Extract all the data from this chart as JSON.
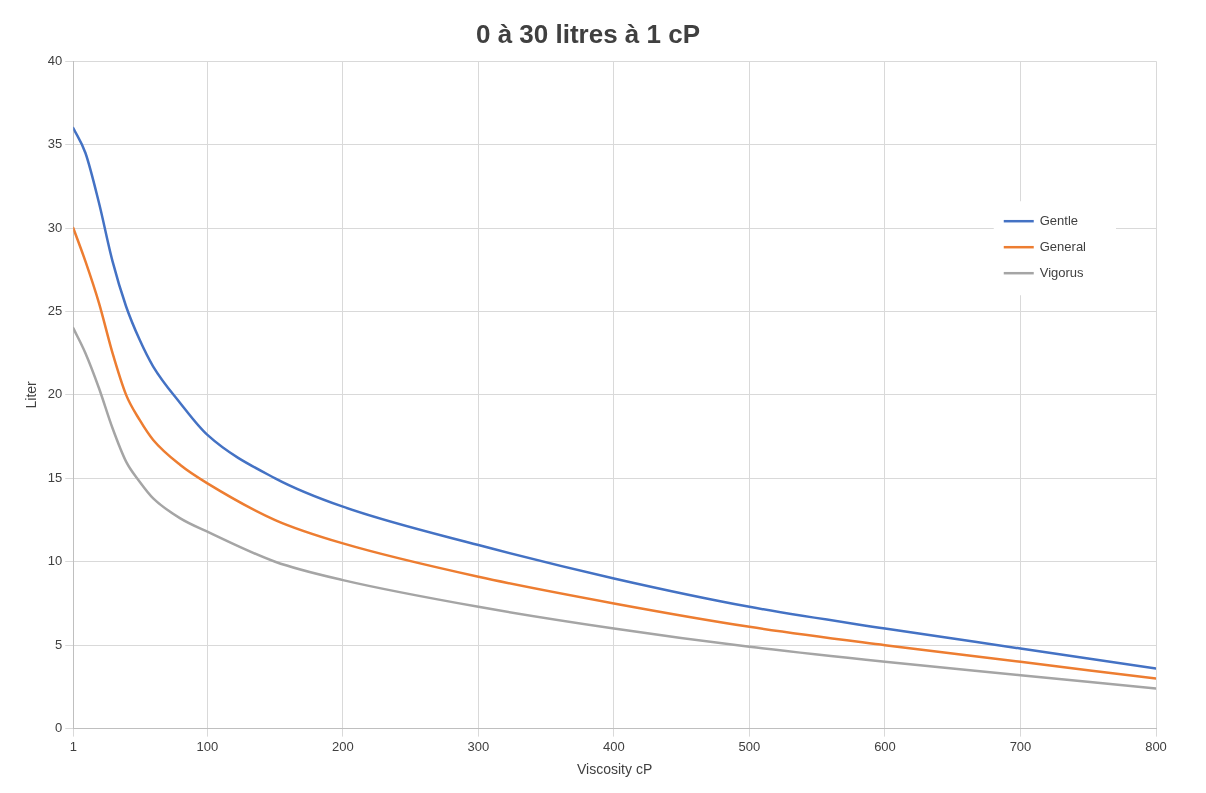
{
  "chart_data": {
    "type": "line",
    "title": "0 à 30 litres à 1 cP",
    "xlabel": "Viscosity cP",
    "ylabel": "Liter",
    "x": [
      1,
      10,
      20,
      30,
      40,
      50,
      60,
      80,
      100,
      150,
      200,
      300,
      400,
      500,
      600,
      700,
      800
    ],
    "series": [
      {
        "name": "Gentle",
        "color": "#4472c4",
        "values": [
          36,
          34.5,
          31.5,
          28,
          25.3,
          23.3,
          21.7,
          19.5,
          17.6,
          15,
          13.3,
          11,
          9,
          7.3,
          6,
          4.8,
          3.6
        ]
      },
      {
        "name": "General",
        "color": "#ed7d31",
        "values": [
          30,
          28,
          25.5,
          22.5,
          20,
          18.5,
          17.3,
          15.8,
          14.7,
          12.5,
          11.1,
          9.1,
          7.5,
          6.1,
          5,
          4,
          3
        ]
      },
      {
        "name": "Vigorus",
        "color": "#a5a5a5",
        "values": [
          24,
          22.5,
          20.4,
          18,
          16,
          14.8,
          13.8,
          12.6,
          11.8,
          10,
          8.9,
          7.3,
          6,
          4.9,
          4,
          3.2,
          2.4
        ]
      }
    ],
    "xlim": [
      1,
      800
    ],
    "xticks": [
      1,
      100,
      200,
      300,
      400,
      500,
      600,
      700,
      800
    ],
    "ylim": [
      0,
      40
    ],
    "yticks": [
      0,
      5,
      10,
      15,
      20,
      25,
      30,
      35,
      40
    ],
    "grid": true,
    "legend": "top right",
    "marker": "none",
    "line_style": "solid"
  }
}
